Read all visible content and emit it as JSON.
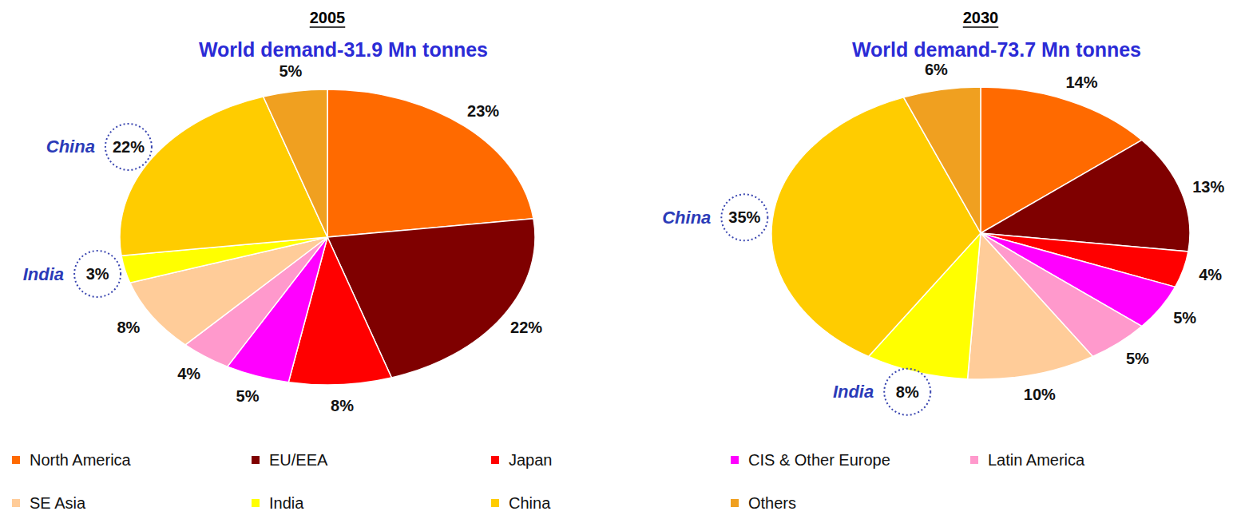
{
  "chart_data": {
    "type": "pie",
    "categories": [
      "North America",
      "EU/EEA",
      "Japan",
      "CIS & Other Europe",
      "Latin America",
      "SE Asia",
      "India",
      "China",
      "Others"
    ],
    "colors": [
      "#ff6a00",
      "#7f0000",
      "#ff0000",
      "#ff00ff",
      "#ff99cc",
      "#ffcc99",
      "#ffff00",
      "#ffcc00",
      "#f0a020"
    ],
    "legend": "bottom",
    "data_labels": true,
    "series": [
      {
        "name": "2005",
        "subtitle": "World demand-31.9 Mn tonnes",
        "values": [
          23,
          22,
          8,
          5,
          4,
          8,
          3,
          22,
          5
        ],
        "value_labels": [
          "23%",
          "22%",
          "8%",
          "5%",
          "4%",
          "8%",
          "3%",
          "22%",
          "5%"
        ],
        "annotations": [
          "China",
          "India"
        ]
      },
      {
        "name": "2030",
        "subtitle": "World demand-73.7 Mn tonnes",
        "values": [
          14,
          13,
          4,
          5,
          5,
          10,
          8,
          35,
          6
        ],
        "value_labels": [
          "14%",
          "13%",
          "4%",
          "5%",
          "5%",
          "10%",
          "8%",
          "35%",
          "6%"
        ],
        "annotations": [
          "China",
          "India"
        ]
      }
    ]
  }
}
